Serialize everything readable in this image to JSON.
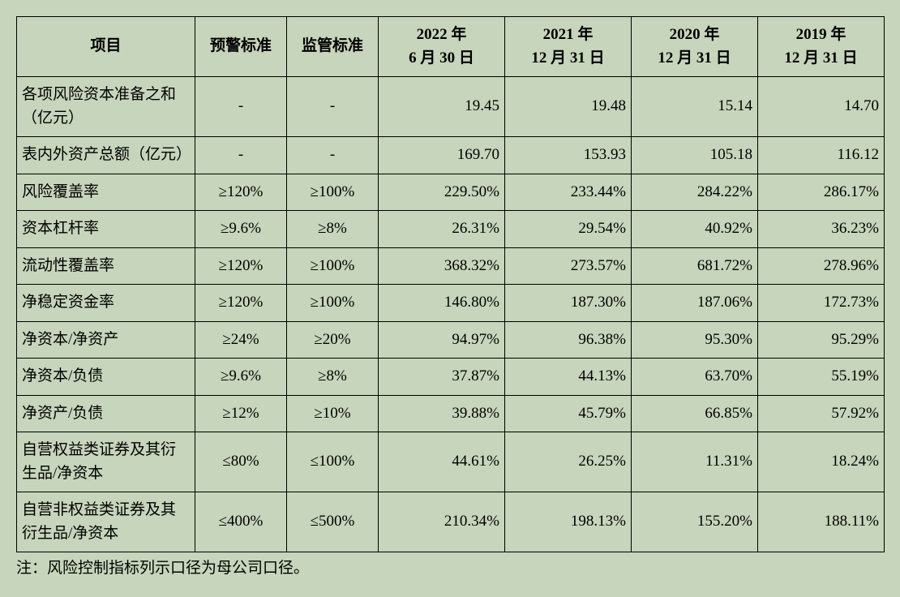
{
  "table": {
    "background_color": "#c6d5bb",
    "border_color": "#000000",
    "font_family": "SimSun",
    "header_fontsize": 19,
    "cell_fontsize": 19,
    "columns": {
      "item": "项目",
      "warn": "预警标准",
      "reg": "监管标准",
      "dates": [
        {
          "line1": "2022 年",
          "line2": "6 月 30 日"
        },
        {
          "line1": "2021 年",
          "line2": "12 月 31 日"
        },
        {
          "line1": "2020 年",
          "line2": "12 月 31 日"
        },
        {
          "line1": "2019 年",
          "line2": "12 月 31 日"
        }
      ]
    },
    "column_widths": {
      "item": 220,
      "warn": 113,
      "reg": 113,
      "date": 156
    },
    "alignment": {
      "item": "left",
      "warn": "center",
      "reg": "center",
      "val": "right"
    },
    "rows": [
      {
        "item": "各项风险资本准备之和（亿元）",
        "warn": "-",
        "reg": "-",
        "vals": [
          "19.45",
          "19.48",
          "15.14",
          "14.70"
        ]
      },
      {
        "item": "表内外资产总额（亿元）",
        "warn": "-",
        "reg": "-",
        "vals": [
          "169.70",
          "153.93",
          "105.18",
          "116.12"
        ]
      },
      {
        "item": "风险覆盖率",
        "warn": "≥120%",
        "reg": "≥100%",
        "vals": [
          "229.50%",
          "233.44%",
          "284.22%",
          "286.17%"
        ]
      },
      {
        "item": "资本杠杆率",
        "warn": "≥9.6%",
        "reg": "≥8%",
        "vals": [
          "26.31%",
          "29.54%",
          "40.92%",
          "36.23%"
        ]
      },
      {
        "item": "流动性覆盖率",
        "warn": "≥120%",
        "reg": "≥100%",
        "vals": [
          "368.32%",
          "273.57%",
          "681.72%",
          "278.96%"
        ]
      },
      {
        "item": "净稳定资金率",
        "warn": "≥120%",
        "reg": "≥100%",
        "vals": [
          "146.80%",
          "187.30%",
          "187.06%",
          "172.73%"
        ]
      },
      {
        "item": "净资本/净资产",
        "warn": "≥24%",
        "reg": "≥20%",
        "vals": [
          "94.97%",
          "96.38%",
          "95.30%",
          "95.29%"
        ]
      },
      {
        "item": "净资本/负债",
        "warn": "≥9.6%",
        "reg": "≥8%",
        "vals": [
          "37.87%",
          "44.13%",
          "63.70%",
          "55.19%"
        ]
      },
      {
        "item": "净资产/负债",
        "warn": "≥12%",
        "reg": "≥10%",
        "vals": [
          "39.88%",
          "45.79%",
          "66.85%",
          "57.92%"
        ]
      },
      {
        "item": "自营权益类证券及其衍生品/净资本",
        "warn": "≤80%",
        "reg": "≤100%",
        "vals": [
          "44.61%",
          "26.25%",
          "11.31%",
          "18.24%"
        ]
      },
      {
        "item": "自营非权益类证券及其衍生品/净资本",
        "warn": "≤400%",
        "reg": "≤500%",
        "vals": [
          "210.34%",
          "198.13%",
          "155.20%",
          "188.11%"
        ]
      }
    ],
    "footnote": "注：风险控制指标列示口径为母公司口径。"
  }
}
